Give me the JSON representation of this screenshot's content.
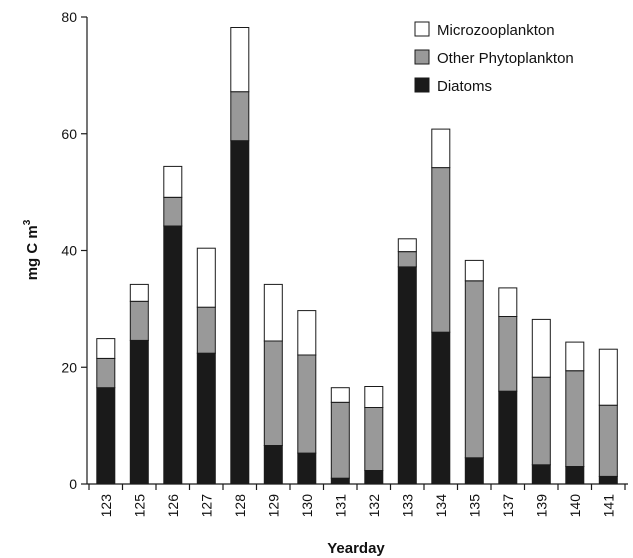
{
  "chart_data": {
    "type": "bar",
    "stacked": true,
    "title": "",
    "xlabel": "Yearday",
    "ylabel": "mg C m",
    "ylabel_superscript": "3",
    "ylim": [
      0,
      80
    ],
    "yticks": [
      0,
      20,
      40,
      60,
      80
    ],
    "grid": false,
    "legend_position": "top-right",
    "categories": [
      "123",
      "125",
      "126",
      "127",
      "128",
      "129",
      "130",
      "131",
      "132",
      "133",
      "134",
      "135",
      "137",
      "139",
      "140",
      "141"
    ],
    "series": [
      {
        "name": "Diatoms",
        "color": "#1a1a1a",
        "values": [
          16.5,
          24.6,
          44.2,
          22.4,
          58.8,
          6.6,
          5.3,
          1.0,
          2.3,
          37.2,
          26.0,
          4.5,
          15.9,
          3.3,
          3.0,
          1.3
        ]
      },
      {
        "name": "Other Phytoplankton",
        "color": "#999999",
        "values": [
          5.0,
          6.7,
          4.9,
          7.9,
          8.4,
          17.9,
          16.8,
          13.0,
          10.8,
          2.6,
          28.2,
          30.3,
          12.8,
          15.0,
          16.4,
          12.2
        ]
      },
      {
        "name": "Microzooplankton",
        "color": "#ffffff",
        "values": [
          3.4,
          2.9,
          5.3,
          10.1,
          11.0,
          9.7,
          7.6,
          2.5,
          3.6,
          2.2,
          6.6,
          3.5,
          4.9,
          9.9,
          4.9,
          9.6
        ]
      }
    ],
    "legend_order": [
      "Microzooplankton",
      "Other Phytoplankton",
      "Diatoms"
    ]
  }
}
